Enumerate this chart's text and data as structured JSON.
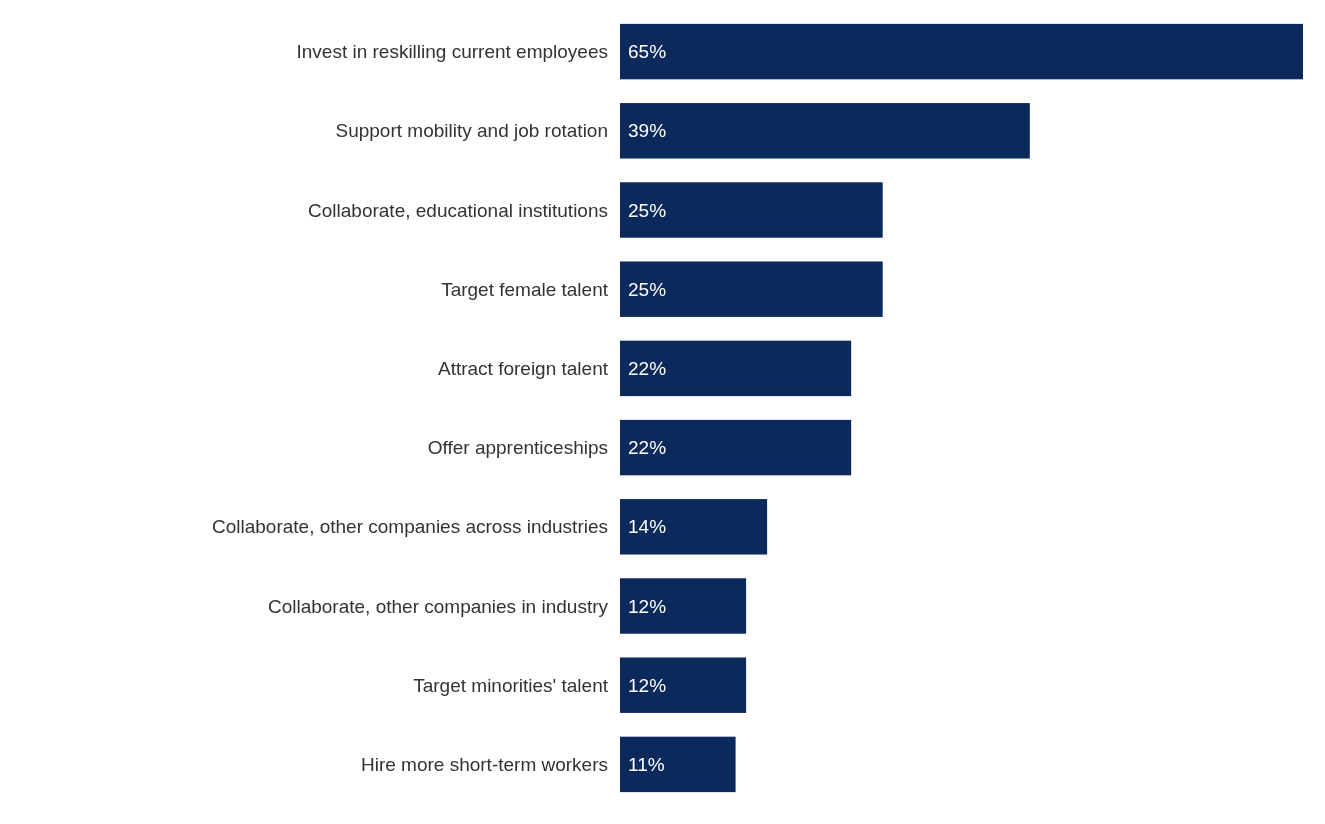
{
  "chart_data": {
    "type": "bar",
    "orientation": "horizontal",
    "data_labels": true,
    "color": "#0b2a5b",
    "categories": [
      "Invest in reskilling current employees",
      "Support mobility and job rotation",
      "Collaborate, educational institutions",
      "Target female talent",
      "Attract foreign talent",
      "Offer apprenticeships",
      "Collaborate, other companies across industries",
      "Collaborate, other companies in industry",
      "Target minorities' talent",
      "Hire more short-term workers"
    ],
    "values": [
      65,
      39,
      25,
      25,
      22,
      22,
      14,
      12,
      12,
      11
    ],
    "value_labels": [
      "65%",
      "39%",
      "25%",
      "25%",
      "22%",
      "22%",
      "14%",
      "12%",
      "12%",
      "11%"
    ]
  }
}
